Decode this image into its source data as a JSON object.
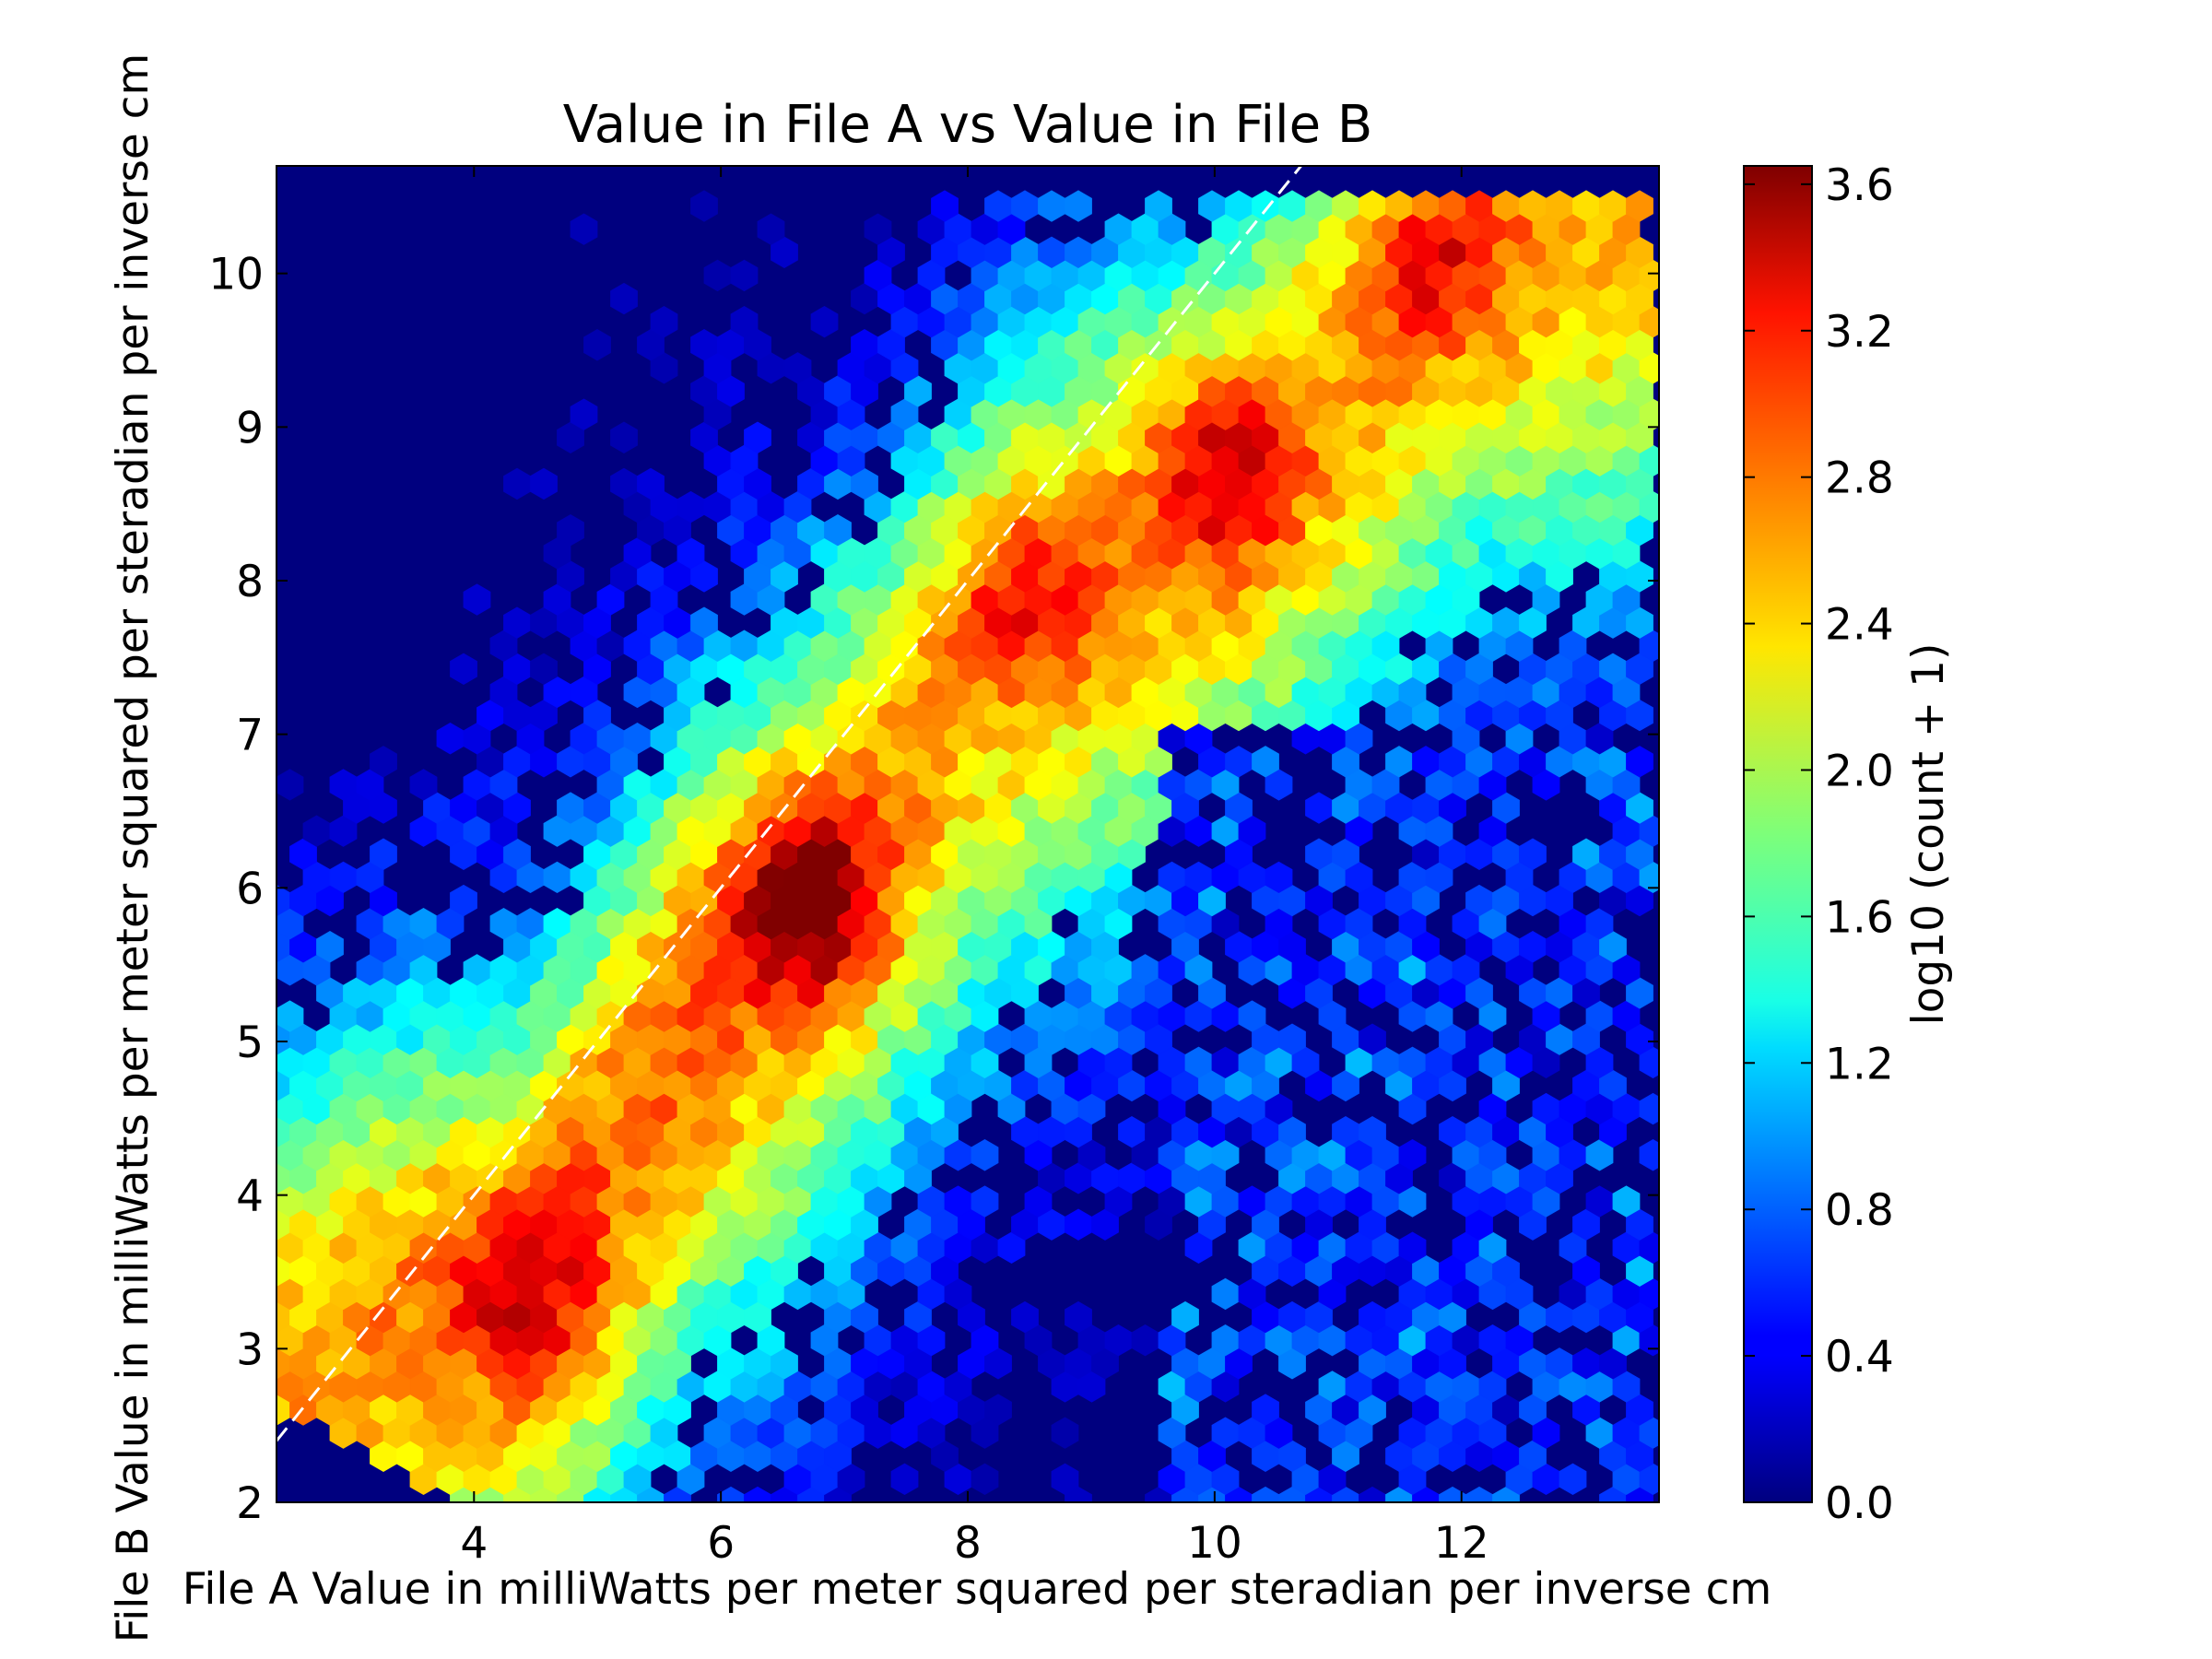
{
  "chart_data": {
    "type": "heatmap",
    "subtype": "hexbin",
    "title": "Value in File A vs Value in File B",
    "xlabel": "File A Value in milliWatts per meter squared per steradian per inverse cm",
    "ylabel": "File B Value in milliWatts per meter squared per steradian per inverse cm",
    "xlim": [
      2.4,
      13.6
    ],
    "ylim": [
      2.0,
      10.7
    ],
    "x_ticks": [
      4,
      6,
      8,
      10,
      12
    ],
    "y_ticks": [
      2,
      3,
      4,
      5,
      6,
      7,
      8,
      9,
      10
    ],
    "colorbar": {
      "label": "log10 (count + 1)",
      "colormap": "jet",
      "range": [
        0.0,
        3.65
      ],
      "ticks": [
        "0.0",
        "0.4",
        "0.8",
        "1.2",
        "1.6",
        "2.0",
        "2.4",
        "2.8",
        "3.2",
        "3.6"
      ]
    },
    "reference_line": {
      "style": "dashed",
      "color": "#ffffff",
      "slope": 1,
      "intercept": 0
    },
    "background_color": "#00007f",
    "density_ridge": [
      {
        "x": 3.0,
        "y": 3.0
      },
      {
        "x": 4.5,
        "y": 3.4
      },
      {
        "x": 5.8,
        "y": 5.2
      },
      {
        "x": 6.7,
        "y": 5.9
      },
      {
        "x": 8.2,
        "y": 7.6
      },
      {
        "x": 10.2,
        "y": 8.6
      },
      {
        "x": 12.0,
        "y": 10.1
      },
      {
        "x": 13.0,
        "y": 10.3
      }
    ],
    "density_peaks": [
      {
        "x": 6.7,
        "y": 5.9,
        "value": 3.6
      },
      {
        "x": 10.1,
        "y": 8.7,
        "value": 3.3
      },
      {
        "x": 4.4,
        "y": 3.4,
        "value": 3.1
      },
      {
        "x": 11.8,
        "y": 10.1,
        "value": 3.1
      },
      {
        "x": 8.5,
        "y": 7.9,
        "value": 3.0
      }
    ]
  }
}
